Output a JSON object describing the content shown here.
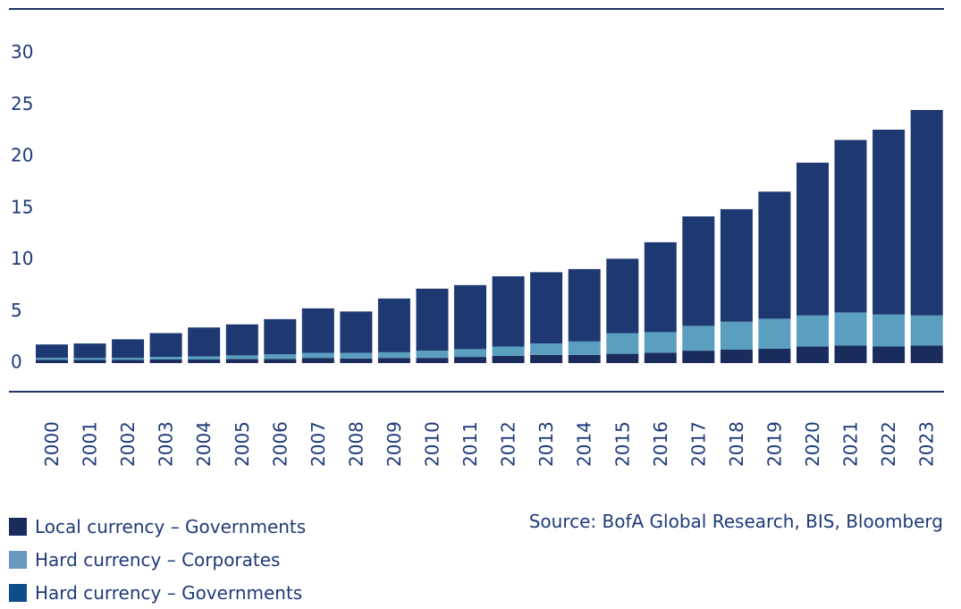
{
  "colors": {
    "text": "#1e3a78",
    "rule": "#1f3564"
  },
  "chart_data": {
    "type": "bar",
    "stacked": true,
    "categories": [
      "2000",
      "2001",
      "2002",
      "2003",
      "2004",
      "2005",
      "2006",
      "2007",
      "2008",
      "2009",
      "2010",
      "2011",
      "2012",
      "2013",
      "2014",
      "2015",
      "2016",
      "2017",
      "2018",
      "2019",
      "2020",
      "2021",
      "2022",
      "2023"
    ],
    "series": [
      {
        "name": "Local currency – Governments",
        "color": "#1a2c5b",
        "values": [
          0.3,
          0.3,
          0.3,
          0.35,
          0.35,
          0.4,
          0.4,
          0.5,
          0.45,
          0.5,
          0.5,
          0.6,
          0.7,
          0.8,
          0.8,
          0.9,
          1.0,
          1.2,
          1.3,
          1.4,
          1.6,
          1.7,
          1.6,
          1.7
        ]
      },
      {
        "name": "Hard currency – Corporates",
        "color": "#5a9ec0",
        "values": [
          0.2,
          0.2,
          0.2,
          0.25,
          0.3,
          0.35,
          0.45,
          0.5,
          0.55,
          0.55,
          0.7,
          0.75,
          0.9,
          1.1,
          1.3,
          2.0,
          2.0,
          2.4,
          2.7,
          2.9,
          3.0,
          3.2,
          3.1,
          2.9
        ]
      },
      {
        "name": "Hard currency – Governments",
        "color": "#1e3872",
        "values": [
          1.3,
          1.4,
          1.8,
          2.3,
          2.8,
          3.0,
          3.4,
          4.3,
          4.0,
          5.2,
          6.0,
          6.2,
          6.8,
          6.9,
          7.0,
          7.2,
          8.7,
          10.6,
          10.9,
          12.3,
          14.8,
          16.7,
          17.9,
          19.9
        ]
      }
    ],
    "yticks": [
      0,
      5,
      10,
      15,
      20,
      25,
      30
    ],
    "ylim": [
      0,
      30
    ],
    "grid": false,
    "legend_position": "bottom-left",
    "legend_swatch_colors": [
      "#1a2c5b",
      "#5a9ec0",
      "#0e4c8a"
    ]
  },
  "source": "Source: BofA Global Research, BIS, Bloomberg"
}
